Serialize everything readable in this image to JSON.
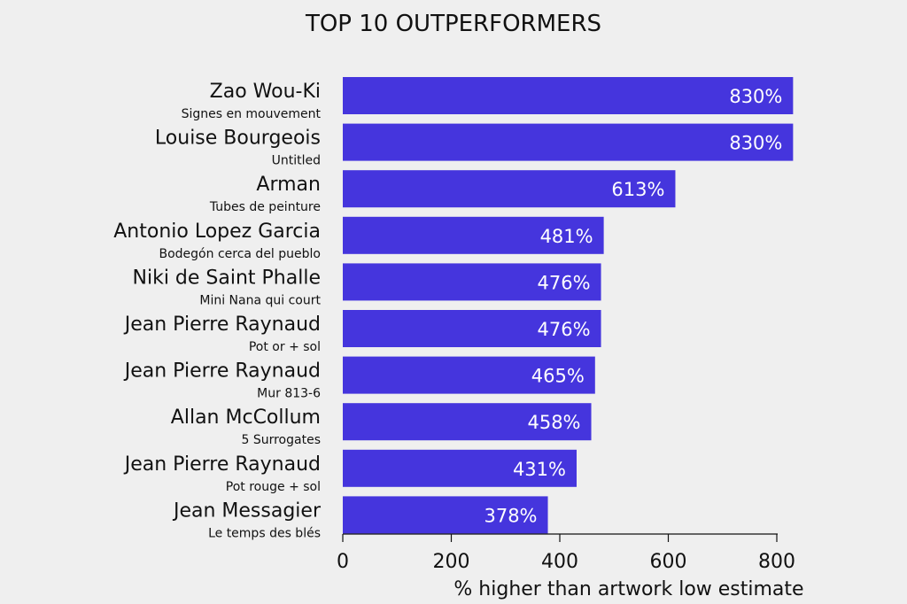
{
  "chart_data": {
    "type": "bar",
    "orientation": "horizontal",
    "title": "TOP 10 OUTPERFORMERS",
    "xlabel": "% higher than artwork low estimate",
    "ylabel": "",
    "xlim": [
      0,
      800
    ],
    "xticks": [
      "0",
      "200",
      "400",
      "600",
      "800"
    ],
    "grid": false,
    "bar_color": "#4535dd",
    "label_color": "#ffffff",
    "categories": [
      {
        "artist": "Zao Wou-Ki",
        "work": "Signes en mouvement"
      },
      {
        "artist": "Louise Bourgeois",
        "work": "Untitled"
      },
      {
        "artist": "Arman",
        "work": "Tubes de peinture"
      },
      {
        "artist": "Antonio Lopez Garcia",
        "work": "Bodegón cerca del pueblo"
      },
      {
        "artist": "Niki de Saint Phalle",
        "work": "Mini Nana qui court"
      },
      {
        "artist": "Jean Pierre Raynaud",
        "work": "Pot or + sol"
      },
      {
        "artist": "Jean Pierre Raynaud",
        "work": "Mur 813-6"
      },
      {
        "artist": "Allan McCollum",
        "work": "5 Surrogates"
      },
      {
        "artist": "Jean Pierre Raynaud",
        "work": "Pot rouge + sol"
      },
      {
        "artist": "Jean Messagier",
        "work": "Le temps des blés"
      }
    ],
    "values": [
      830,
      830,
      613,
      481,
      476,
      476,
      465,
      458,
      431,
      378
    ],
    "value_labels": [
      "830%",
      "830%",
      "613%",
      "481%",
      "476%",
      "476%",
      "465%",
      "458%",
      "431%",
      "378%"
    ]
  }
}
